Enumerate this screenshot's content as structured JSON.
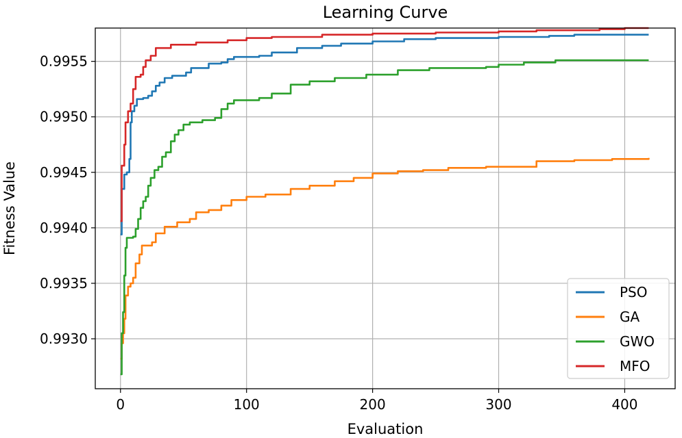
{
  "chart_data": {
    "type": "line",
    "title": "Learning Curve",
    "xlabel": "Evaluation",
    "ylabel": "Fitness Value",
    "xlim": [
      -20,
      440
    ],
    "ylim": [
      0.99255,
      0.9958
    ],
    "xticks": [
      0,
      100,
      200,
      300,
      400
    ],
    "yticks": [
      0.993,
      0.9935,
      0.994,
      0.9945,
      0.995,
      0.9955
    ],
    "xtick_labels": [
      "0",
      "100",
      "200",
      "300",
      "400"
    ],
    "ytick_labels": [
      "0.9930",
      "0.9935",
      "0.9940",
      "0.9945",
      "0.9950",
      "0.9955"
    ],
    "grid": true,
    "legend_position": "bottom-right",
    "series": [
      {
        "name": "PSO",
        "color": "#1f77b4",
        "points": [
          [
            0,
            0.99394
          ],
          [
            1,
            0.99435
          ],
          [
            3,
            0.99448
          ],
          [
            5,
            0.9945
          ],
          [
            7,
            0.99462
          ],
          [
            8,
            0.99495
          ],
          [
            9,
            0.99505
          ],
          [
            11,
            0.9951
          ],
          [
            13,
            0.99516
          ],
          [
            18,
            0.99517
          ],
          [
            22,
            0.99519
          ],
          [
            25,
            0.99523
          ],
          [
            28,
            0.99528
          ],
          [
            31,
            0.99531
          ],
          [
            35,
            0.99535
          ],
          [
            41,
            0.99537
          ],
          [
            52,
            0.9954
          ],
          [
            56,
            0.99544
          ],
          [
            70,
            0.99548
          ],
          [
            80,
            0.99549
          ],
          [
            85,
            0.99552
          ],
          [
            90,
            0.99554
          ],
          [
            110,
            0.99555
          ],
          [
            120,
            0.99558
          ],
          [
            140,
            0.99562
          ],
          [
            160,
            0.99564
          ],
          [
            175,
            0.99566
          ],
          [
            200,
            0.99568
          ],
          [
            225,
            0.9957
          ],
          [
            250,
            0.99571
          ],
          [
            300,
            0.99572
          ],
          [
            340,
            0.99573
          ],
          [
            360,
            0.99574
          ],
          [
            419,
            0.99574
          ]
        ]
      },
      {
        "name": "GA",
        "color": "#ff7f0e",
        "points": [
          [
            0,
            0.99282
          ],
          [
            1,
            0.99296
          ],
          [
            2,
            0.99305
          ],
          [
            3,
            0.99318
          ],
          [
            4,
            0.99339
          ],
          [
            6,
            0.99347
          ],
          [
            8,
            0.9935
          ],
          [
            10,
            0.99355
          ],
          [
            12,
            0.99368
          ],
          [
            15,
            0.99376
          ],
          [
            17,
            0.99384
          ],
          [
            25,
            0.99387
          ],
          [
            28,
            0.99395
          ],
          [
            35,
            0.99401
          ],
          [
            45,
            0.99405
          ],
          [
            55,
            0.99408
          ],
          [
            60,
            0.99414
          ],
          [
            70,
            0.99416
          ],
          [
            80,
            0.9942
          ],
          [
            88,
            0.99425
          ],
          [
            100,
            0.99428
          ],
          [
            115,
            0.9943
          ],
          [
            135,
            0.99435
          ],
          [
            150,
            0.99438
          ],
          [
            170,
            0.99442
          ],
          [
            185,
            0.99445
          ],
          [
            200,
            0.99449
          ],
          [
            220,
            0.99451
          ],
          [
            240,
            0.99452
          ],
          [
            260,
            0.99454
          ],
          [
            290,
            0.99455
          ],
          [
            330,
            0.9946
          ],
          [
            360,
            0.99461
          ],
          [
            390,
            0.99462
          ],
          [
            419,
            0.99463
          ]
        ]
      },
      {
        "name": "GWO",
        "color": "#2ca02c",
        "points": [
          [
            0,
            0.99268
          ],
          [
            1,
            0.99305
          ],
          [
            2,
            0.99324
          ],
          [
            3,
            0.99357
          ],
          [
            4,
            0.99382
          ],
          [
            5,
            0.99391
          ],
          [
            10,
            0.99392
          ],
          [
            12,
            0.99399
          ],
          [
            14,
            0.99408
          ],
          [
            16,
            0.99418
          ],
          [
            18,
            0.99424
          ],
          [
            20,
            0.99428
          ],
          [
            22,
            0.99438
          ],
          [
            24,
            0.99445
          ],
          [
            27,
            0.99452
          ],
          [
            30,
            0.99455
          ],
          [
            33,
            0.99464
          ],
          [
            36,
            0.99468
          ],
          [
            40,
            0.99478
          ],
          [
            43,
            0.99484
          ],
          [
            46,
            0.99488
          ],
          [
            50,
            0.99493
          ],
          [
            55,
            0.99495
          ],
          [
            65,
            0.99497
          ],
          [
            75,
            0.99499
          ],
          [
            80,
            0.99507
          ],
          [
            85,
            0.99512
          ],
          [
            90,
            0.99515
          ],
          [
            110,
            0.99517
          ],
          [
            120,
            0.99521
          ],
          [
            135,
            0.99529
          ],
          [
            150,
            0.99532
          ],
          [
            170,
            0.99535
          ],
          [
            195,
            0.99538
          ],
          [
            220,
            0.99542
          ],
          [
            245,
            0.99544
          ],
          [
            290,
            0.99545
          ],
          [
            300,
            0.99547
          ],
          [
            320,
            0.99549
          ],
          [
            345,
            0.99551
          ],
          [
            419,
            0.99551
          ]
        ]
      },
      {
        "name": "MFO",
        "color": "#d62728",
        "points": [
          [
            0,
            0.99406
          ],
          [
            1,
            0.99456
          ],
          [
            3,
            0.99475
          ],
          [
            4,
            0.99495
          ],
          [
            6,
            0.99505
          ],
          [
            8,
            0.99512
          ],
          [
            10,
            0.99525
          ],
          [
            12,
            0.99536
          ],
          [
            16,
            0.99538
          ],
          [
            18,
            0.99545
          ],
          [
            20,
            0.99551
          ],
          [
            24,
            0.99555
          ],
          [
            28,
            0.99562
          ],
          [
            40,
            0.99565
          ],
          [
            60,
            0.99567
          ],
          [
            85,
            0.99569
          ],
          [
            100,
            0.99571
          ],
          [
            120,
            0.99572
          ],
          [
            160,
            0.99574
          ],
          [
            200,
            0.99575
          ],
          [
            250,
            0.99576
          ],
          [
            300,
            0.99577
          ],
          [
            330,
            0.99578
          ],
          [
            380,
            0.99579
          ],
          [
            400,
            0.9958
          ],
          [
            419,
            0.9958
          ]
        ]
      }
    ]
  }
}
